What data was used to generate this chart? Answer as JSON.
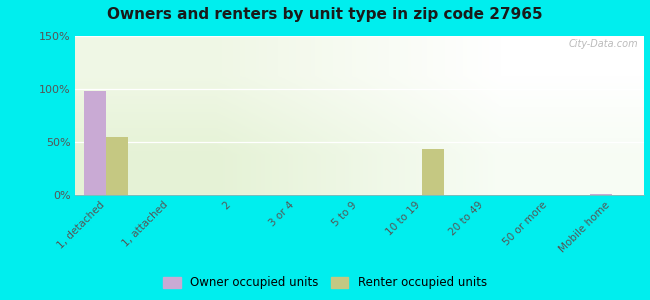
{
  "title": "Owners and renters by unit type in zip code 27965",
  "categories": [
    "1, detached",
    "1, attached",
    "2",
    "3 or 4",
    "5 to 9",
    "10 to 19",
    "20 to 49",
    "50 or more",
    "Mobile home"
  ],
  "owner_values": [
    98,
    0,
    0,
    0,
    0,
    0,
    0,
    0,
    1
  ],
  "renter_values": [
    55,
    0,
    0,
    0,
    0,
    43,
    0,
    0,
    0
  ],
  "owner_color": "#c9aad4",
  "renter_color": "#c5c882",
  "ylim": [
    0,
    150
  ],
  "yticks": [
    0,
    50,
    100,
    150
  ],
  "ytick_labels": [
    "0%",
    "50%",
    "100%",
    "150%"
  ],
  "outer_background": "#00eeee",
  "watermark": "City-Data.com",
  "bar_width": 0.35,
  "legend_owner": "Owner occupied units",
  "legend_renter": "Renter occupied units"
}
